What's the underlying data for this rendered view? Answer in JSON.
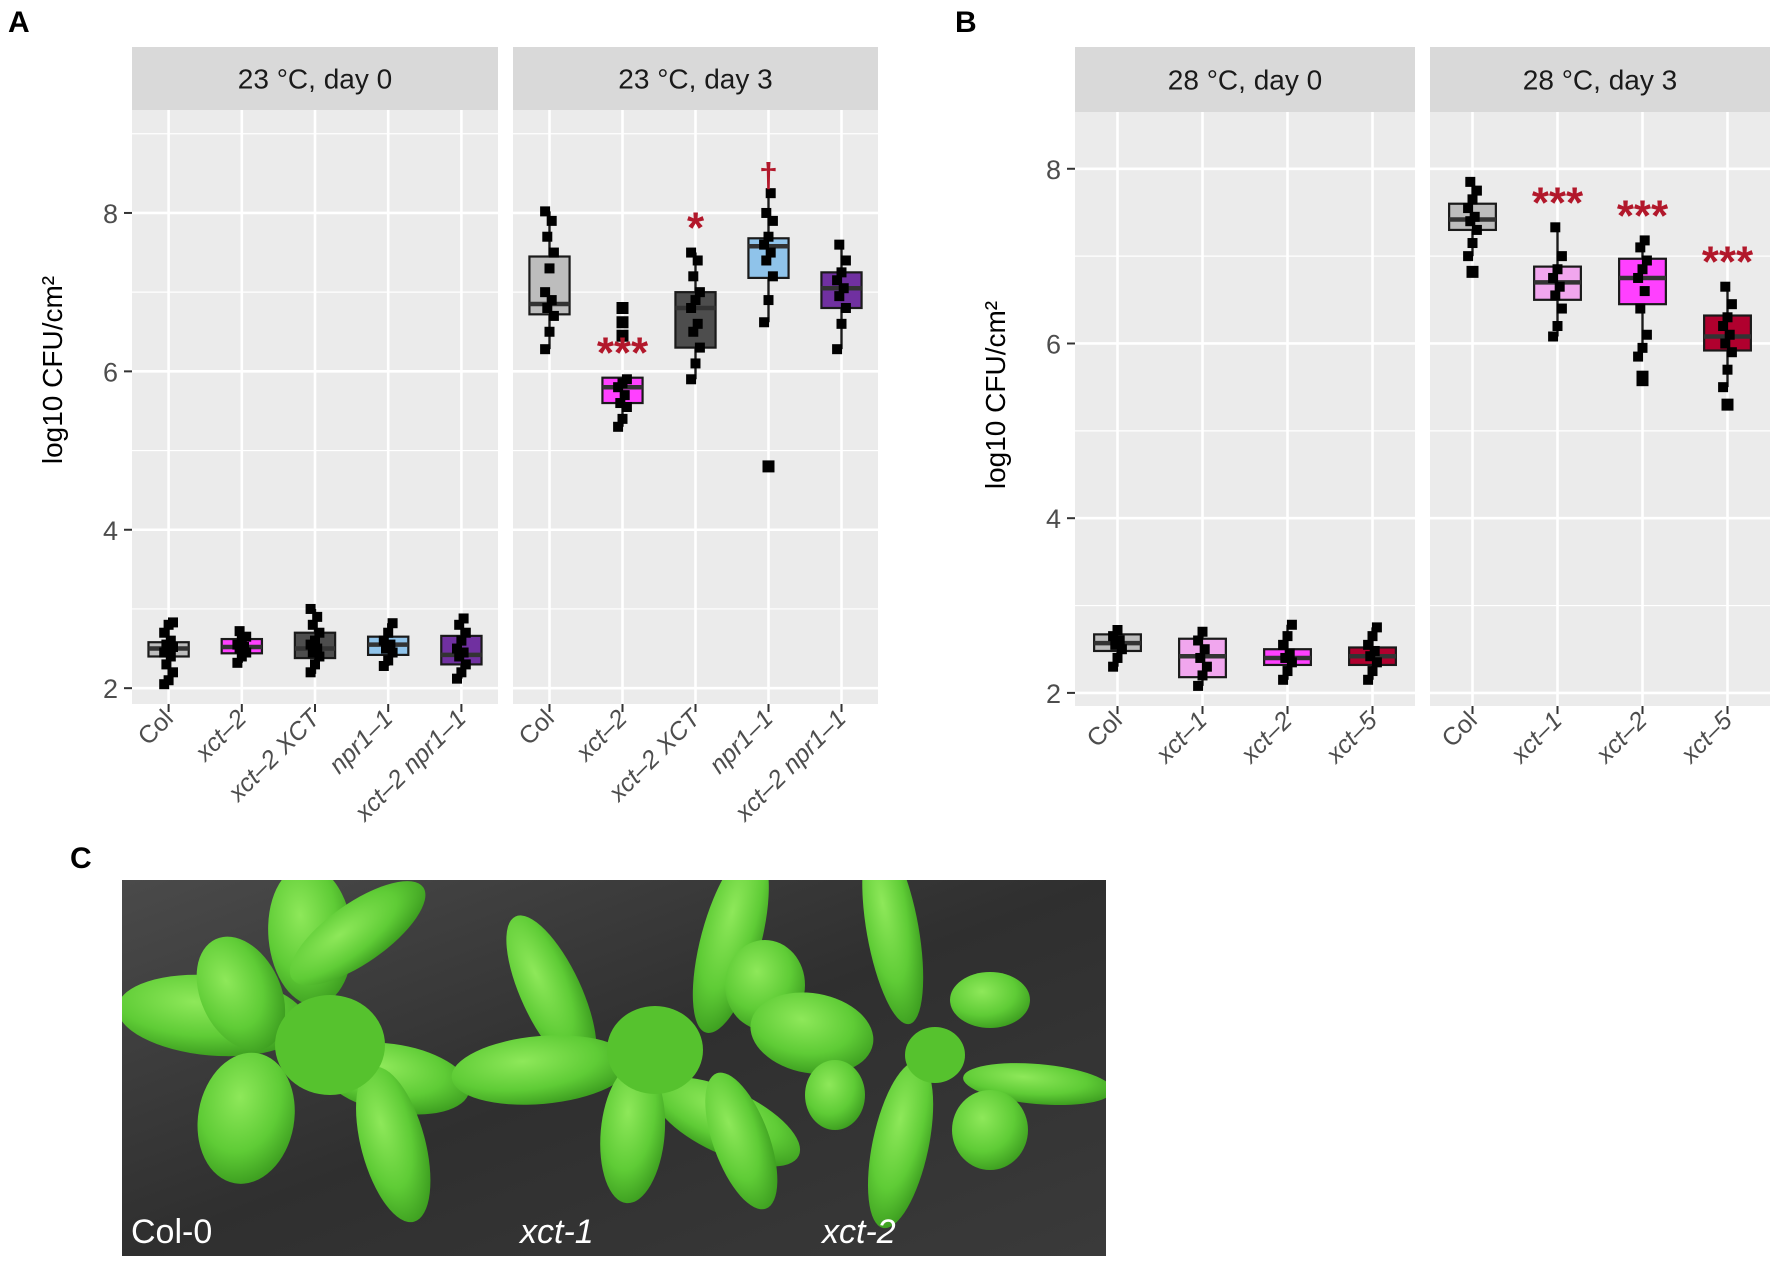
{
  "figure": {
    "panel_labels": [
      "A",
      "B",
      "C"
    ]
  },
  "colors": {
    "panel_bg": "#ebebeb",
    "strip_bg": "#d9d9d9",
    "grid": "#ffffff",
    "significance": "#b2182b",
    "Col": "#bdbdbd",
    "xct-1": "#f1a6ee",
    "xct-2": "#ff40ff",
    "xct-2 XCT": "#4d4d4d",
    "npr1-1": "#8fc3ea",
    "xct-2 npr1-1": "#7030a0",
    "xct-5": "#b0002e"
  },
  "chart_data": [
    {
      "type": "box",
      "panel": "A",
      "ylabel": "log10 CFU/cm²",
      "ylim": [
        1.8,
        9.3
      ],
      "yticks": [
        2,
        4,
        6,
        8
      ],
      "facets": [
        {
          "title": "23 °C, day 0",
          "categories": [
            "Col",
            "xct–2",
            "xct–2 XCT",
            "npr1–1",
            "xct–2 npr1–1"
          ],
          "boxes": [
            {
              "q1": 2.4,
              "median": 2.5,
              "q3": 2.58,
              "wlo": 2.1,
              "whi": 2.83,
              "outliers": [],
              "points": [
                2.05,
                2.1,
                2.2,
                2.3,
                2.4,
                2.45,
                2.5,
                2.52,
                2.55,
                2.6,
                2.7,
                2.8,
                2.83
              ],
              "sig": ""
            },
            {
              "q1": 2.44,
              "median": 2.52,
              "q3": 2.62,
              "wlo": 2.32,
              "whi": 2.72,
              "outliers": [],
              "points": [
                2.32,
                2.4,
                2.45,
                2.5,
                2.52,
                2.55,
                2.6,
                2.65,
                2.72
              ],
              "sig": ""
            },
            {
              "q1": 2.38,
              "median": 2.5,
              "q3": 2.7,
              "wlo": 2.18,
              "whi": 3.0,
              "outliers": [],
              "points": [
                2.2,
                2.3,
                2.4,
                2.45,
                2.5,
                2.55,
                2.6,
                2.7,
                2.8,
                2.9,
                3.0
              ],
              "sig": ""
            },
            {
              "q1": 2.42,
              "median": 2.55,
              "q3": 2.65,
              "wlo": 2.28,
              "whi": 2.82,
              "outliers": [],
              "points": [
                2.28,
                2.35,
                2.45,
                2.5,
                2.55,
                2.6,
                2.7,
                2.82
              ],
              "sig": ""
            },
            {
              "q1": 2.3,
              "median": 2.42,
              "q3": 2.66,
              "wlo": 2.12,
              "whi": 2.88,
              "outliers": [],
              "points": [
                2.12,
                2.2,
                2.3,
                2.4,
                2.45,
                2.5,
                2.6,
                2.7,
                2.8,
                2.88
              ],
              "sig": ""
            }
          ]
        },
        {
          "title": "23 °C, day 3",
          "categories": [
            "Col",
            "xct–2",
            "xct–2 XCT",
            "npr1–1",
            "xct–2 npr1–1"
          ],
          "boxes": [
            {
              "q1": 6.72,
              "median": 6.85,
              "q3": 7.45,
              "wlo": 6.28,
              "whi": 8.02,
              "outliers": [],
              "points": [
                6.28,
                6.5,
                6.7,
                6.8,
                6.9,
                7.0,
                7.3,
                7.5,
                7.7,
                7.9,
                8.02
              ],
              "sig": ""
            },
            {
              "q1": 5.6,
              "median": 5.8,
              "q3": 5.92,
              "wlo": 5.3,
              "whi": 5.92,
              "outliers": [
                6.45,
                6.62,
                6.8
              ],
              "points": [
                5.3,
                5.4,
                5.55,
                5.6,
                5.7,
                5.8,
                5.85,
                5.9
              ],
              "sig": "***"
            },
            {
              "q1": 6.3,
              "median": 6.8,
              "q3": 7.0,
              "wlo": 5.9,
              "whi": 7.5,
              "outliers": [],
              "points": [
                5.9,
                6.1,
                6.3,
                6.5,
                6.6,
                6.8,
                6.9,
                7.0,
                7.2,
                7.4,
                7.5
              ],
              "sig": "*"
            },
            {
              "q1": 7.18,
              "median": 7.58,
              "q3": 7.68,
              "wlo": 6.62,
              "whi": 8.25,
              "outliers": [
                4.8
              ],
              "points": [
                6.62,
                6.9,
                7.2,
                7.4,
                7.5,
                7.6,
                7.7,
                7.9,
                8.0,
                8.25
              ],
              "sig": "†"
            },
            {
              "q1": 6.8,
              "median": 7.05,
              "q3": 7.25,
              "wlo": 6.28,
              "whi": 7.6,
              "outliers": [],
              "points": [
                6.28,
                6.6,
                6.8,
                6.95,
                7.05,
                7.15,
                7.25,
                7.4,
                7.6
              ],
              "sig": ""
            }
          ]
        }
      ]
    },
    {
      "type": "box",
      "panel": "B",
      "ylabel": "log10 CFU/cm²",
      "ylim": [
        1.85,
        8.65
      ],
      "yticks": [
        2,
        4,
        6,
        8
      ],
      "facets": [
        {
          "title": "28 °C, day 0",
          "categories": [
            "Col",
            "xct–1",
            "xct–2",
            "xct–5"
          ],
          "boxes": [
            {
              "q1": 2.48,
              "median": 2.57,
              "q3": 2.67,
              "wlo": 2.3,
              "whi": 2.72,
              "outliers": [],
              "points": [
                2.3,
                2.4,
                2.5,
                2.55,
                2.6,
                2.65,
                2.72
              ],
              "sig": ""
            },
            {
              "q1": 2.18,
              "median": 2.42,
              "q3": 2.62,
              "wlo": 2.08,
              "whi": 2.7,
              "outliers": [],
              "points": [
                2.08,
                2.2,
                2.3,
                2.4,
                2.5,
                2.6,
                2.7
              ],
              "sig": ""
            },
            {
              "q1": 2.32,
              "median": 2.4,
              "q3": 2.5,
              "wlo": 2.15,
              "whi": 2.78,
              "outliers": [],
              "points": [
                2.15,
                2.25,
                2.35,
                2.4,
                2.45,
                2.55,
                2.65,
                2.78
              ],
              "sig": ""
            },
            {
              "q1": 2.32,
              "median": 2.42,
              "q3": 2.52,
              "wlo": 2.15,
              "whi": 2.75,
              "outliers": [],
              "points": [
                2.15,
                2.25,
                2.35,
                2.42,
                2.48,
                2.55,
                2.65,
                2.75
              ],
              "sig": ""
            }
          ]
        },
        {
          "title": "28 °C, day 3",
          "categories": [
            "Col",
            "xct–1",
            "xct–2",
            "xct–5"
          ],
          "boxes": [
            {
              "q1": 7.3,
              "median": 7.42,
              "q3": 7.6,
              "wlo": 7.0,
              "whi": 7.85,
              "outliers": [
                6.82
              ],
              "points": [
                7.0,
                7.15,
                7.3,
                7.4,
                7.45,
                7.55,
                7.65,
                7.75,
                7.85
              ],
              "sig": ""
            },
            {
              "q1": 6.5,
              "median": 6.7,
              "q3": 6.88,
              "wlo": 6.08,
              "whi": 7.33,
              "outliers": [],
              "points": [
                6.08,
                6.2,
                6.4,
                6.55,
                6.65,
                6.75,
                6.85,
                7.0,
                7.33
              ],
              "sig": "***"
            },
            {
              "q1": 6.45,
              "median": 6.75,
              "q3": 6.97,
              "wlo": 6.0,
              "whi": 7.18,
              "outliers": [
                5.58,
                5.62
              ],
              "points": [
                5.85,
                5.95,
                6.1,
                6.4,
                6.6,
                6.75,
                6.85,
                6.95,
                7.1,
                7.18
              ],
              "sig": "***"
            },
            {
              "q1": 5.92,
              "median": 6.08,
              "q3": 6.32,
              "wlo": 5.5,
              "whi": 6.65,
              "outliers": [
                5.3
              ],
              "points": [
                5.5,
                5.7,
                5.9,
                6.0,
                6.1,
                6.2,
                6.3,
                6.45,
                6.65
              ],
              "sig": "***"
            }
          ]
        }
      ]
    }
  ],
  "photo": {
    "labels": [
      "Col-0",
      "xct-1",
      "xct-2"
    ]
  }
}
